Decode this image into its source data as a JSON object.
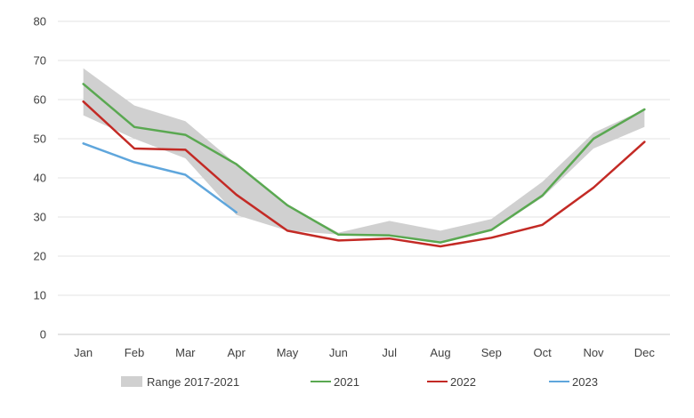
{
  "chart_data": {
    "type": "line",
    "title": "",
    "xlabel": "",
    "ylabel": "",
    "ylim": [
      0,
      80
    ],
    "yticks": [
      0,
      10,
      20,
      30,
      40,
      50,
      60,
      70,
      80
    ],
    "grid": true,
    "categories": [
      "Jan",
      "Feb",
      "Mar",
      "Apr",
      "May",
      "Jun",
      "Jul",
      "Aug",
      "Sep",
      "Oct",
      "Nov",
      "Dec"
    ],
    "range": {
      "name": "Range 2017-2021",
      "color": "#d0d0d0",
      "low": [
        56,
        50,
        45,
        30.5,
        26.5,
        25.5,
        25,
        23.5,
        26.5,
        35,
        47.5,
        53
      ],
      "high": [
        68,
        58.5,
        54.5,
        43.5,
        33,
        26,
        29,
        26.5,
        29.5,
        39,
        51.5,
        57.5
      ]
    },
    "series": [
      {
        "name": "2021",
        "color": "#5aa851",
        "values": [
          64,
          53,
          51,
          43.5,
          33,
          25.5,
          25.3,
          23.5,
          26.7,
          35.5,
          50,
          57.5
        ]
      },
      {
        "name": "2022",
        "color": "#c32a25",
        "values": [
          59.5,
          47.5,
          47.2,
          35.7,
          26.5,
          24,
          24.5,
          22.5,
          24.7,
          28,
          37.5,
          49.2
        ]
      },
      {
        "name": "2023",
        "color": "#5fa6dc",
        "values": [
          48.8,
          44,
          40.8,
          31.2,
          null,
          null,
          null,
          null,
          null,
          null,
          null,
          null
        ]
      }
    ],
    "legend": {
      "position": "bottom",
      "items": [
        "Range 2017-2021",
        "2021",
        "2022",
        "2023"
      ]
    }
  }
}
